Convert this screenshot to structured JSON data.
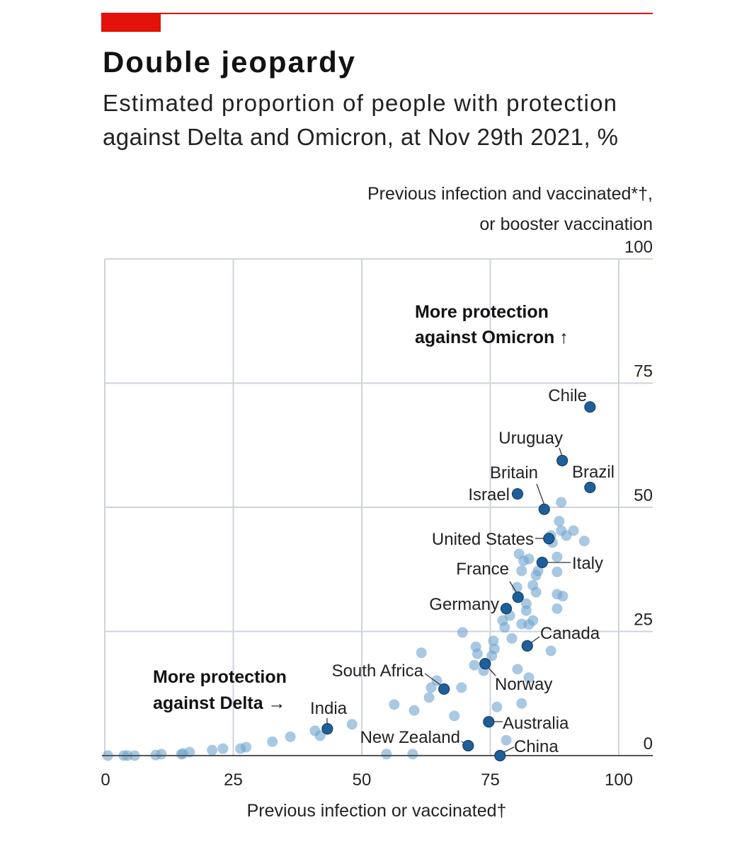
{
  "header": {
    "title": "Double jeopardy",
    "subtitle_line1": "Estimated proportion of people with protection",
    "subtitle_line2": "against Delta and Omicron, at Nov 29th 2021, %"
  },
  "colors": {
    "brand_red": "#e3120b",
    "highlight_point": "#1f5f99",
    "other_point": "#6fa3cf",
    "grid": "#cdd3de",
    "baseline": "#555555"
  },
  "chart_data": {
    "type": "scatter",
    "title": "Double jeopardy",
    "xlabel": "Previous infection or vaccinated†",
    "ylabel_line1": "Previous infection and vaccinated*†,",
    "ylabel_line2": "or booster vaccination",
    "xlim": [
      0,
      100
    ],
    "ylim": [
      0,
      100
    ],
    "x_ticks": [
      "0",
      "25",
      "50",
      "75",
      "100"
    ],
    "y_ticks": [
      "0",
      "25",
      "50",
      "75",
      "100"
    ],
    "grid": true,
    "annotations": {
      "omicron_line1": "More protection",
      "omicron_line2": "against Omicron ↑",
      "delta_line1": "More protection",
      "delta_line2": "against Delta →"
    },
    "highlighted": [
      {
        "name": "Chile",
        "x": 94.4,
        "y": 70.2
      },
      {
        "name": "Uruguay",
        "x": 89.0,
        "y": 59.4
      },
      {
        "name": "Brazil",
        "x": 94.4,
        "y": 54.0
      },
      {
        "name": "Israel",
        "x": 80.3,
        "y": 52.7
      },
      {
        "name": "Britain",
        "x": 85.5,
        "y": 49.6
      },
      {
        "name": "United States",
        "x": 86.4,
        "y": 43.7
      },
      {
        "name": "Italy",
        "x": 85.1,
        "y": 38.9
      },
      {
        "name": "France",
        "x": 80.4,
        "y": 31.9
      },
      {
        "name": "Germany",
        "x": 78.1,
        "y": 29.6
      },
      {
        "name": "Canada",
        "x": 82.2,
        "y": 22.1
      },
      {
        "name": "Norway",
        "x": 74.0,
        "y": 18.5
      },
      {
        "name": "South Africa",
        "x": 66.0,
        "y": 13.4
      },
      {
        "name": "India",
        "x": 43.3,
        "y": 5.4
      },
      {
        "name": "Australia",
        "x": 74.7,
        "y": 6.8
      },
      {
        "name": "New Zealand",
        "x": 70.7,
        "y": 2.0
      },
      {
        "name": "China",
        "x": 76.9,
        "y": 0.0
      }
    ],
    "others": [
      [
        0.6,
        0
      ],
      [
        3.7,
        0
      ],
      [
        4.4,
        0
      ],
      [
        5.8,
        0
      ],
      [
        9.9,
        0.1
      ],
      [
        11,
        0.3
      ],
      [
        14.9,
        0.3
      ],
      [
        15.2,
        0.4
      ],
      [
        16.5,
        0.7
      ],
      [
        20.9,
        1.1
      ],
      [
        23,
        1.4
      ],
      [
        26.4,
        1.4
      ],
      [
        27.5,
        1.7
      ],
      [
        32.6,
        2.8
      ],
      [
        36.1,
        3.8
      ],
      [
        40.9,
        5.0
      ],
      [
        41.9,
        4.0
      ],
      [
        48.1,
        6.3
      ],
      [
        54.8,
        0.3
      ],
      [
        59.9,
        0.3
      ],
      [
        56.3,
        10.3
      ],
      [
        60.2,
        9.1
      ],
      [
        68,
        8
      ],
      [
        63.1,
        11.7
      ],
      [
        63.5,
        13.7
      ],
      [
        64.6,
        15.1
      ],
      [
        69.4,
        13.7
      ],
      [
        61.6,
        20.7
      ],
      [
        69.6,
        24.8
      ],
      [
        76.3,
        9.8
      ],
      [
        81.1,
        10.5
      ],
      [
        78.1,
        3.1
      ],
      [
        80.3,
        17.4
      ],
      [
        82.5,
        15.7
      ],
      [
        71.9,
        18.2
      ],
      [
        72.2,
        21.9
      ],
      [
        75.6,
        23.1
      ],
      [
        75.8,
        21.5
      ],
      [
        73.7,
        17.1
      ],
      [
        75.3,
        20.1
      ],
      [
        88.8,
        51
      ],
      [
        88.4,
        47.2
      ],
      [
        88.8,
        45.3
      ],
      [
        89.8,
        44.3
      ],
      [
        91.2,
        45.3
      ],
      [
        93.3,
        43.2
      ],
      [
        86.8,
        44.3
      ],
      [
        87.1,
        42.9
      ],
      [
        80.6,
        40.6
      ],
      [
        82.5,
        39.6
      ],
      [
        81.5,
        39.2
      ],
      [
        88,
        40
      ],
      [
        88,
        37
      ],
      [
        81.1,
        37.2
      ],
      [
        84.3,
        37.2
      ],
      [
        83.9,
        36.3
      ],
      [
        80.2,
        33.9
      ],
      [
        83.3,
        34.3
      ],
      [
        83.9,
        32.9
      ],
      [
        88,
        32.5
      ],
      [
        89.1,
        32.1
      ],
      [
        88,
        29.6
      ],
      [
        82,
        30.6
      ],
      [
        82,
        29.2
      ],
      [
        78.8,
        28.2
      ],
      [
        77.4,
        27.2
      ],
      [
        77.8,
        25.8
      ],
      [
        81.1,
        26.5
      ],
      [
        82.5,
        26.4
      ],
      [
        83.3,
        27.2
      ],
      [
        79.2,
        23.6
      ],
      [
        86.8,
        21.1
      ],
      [
        72.5,
        20.5
      ]
    ]
  }
}
